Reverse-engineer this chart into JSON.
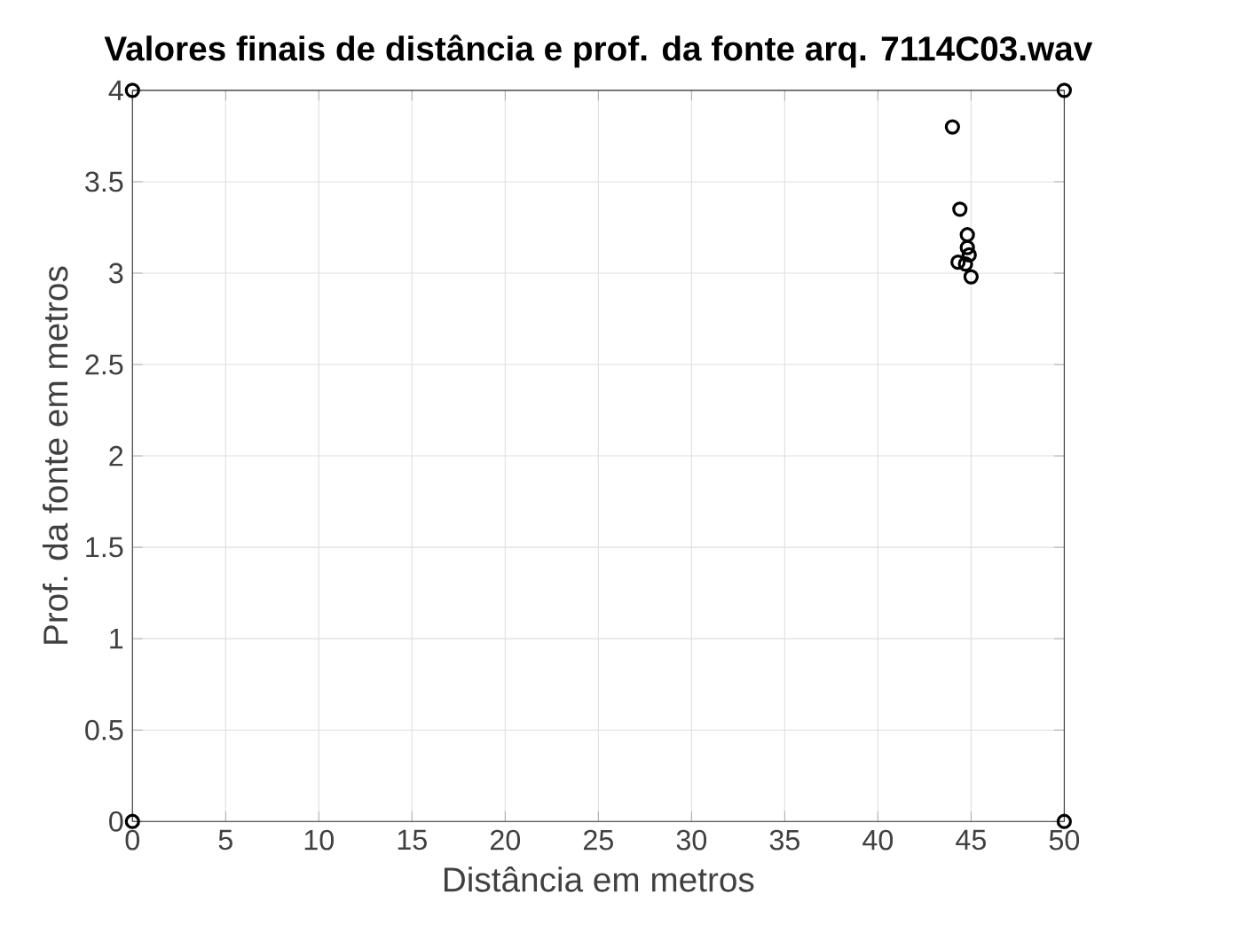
{
  "chart_data": {
    "type": "scatter",
    "title": "Valores finais de distância e prof. da fonte  arq. 7114C03.wav",
    "xlabel": "Distância em metros",
    "ylabel": "Prof. da fonte em metros",
    "x": [
      0,
      0,
      50,
      50,
      44.0,
      44.4,
      44.8,
      44.8,
      44.9,
      44.3,
      44.7,
      45.0
    ],
    "values": [
      0,
      4,
      4,
      0,
      3.8,
      3.35,
      3.21,
      3.14,
      3.1,
      3.06,
      3.05,
      2.98
    ],
    "color": "#000000",
    "marker": "circle",
    "xlim": [
      0,
      50
    ],
    "ylim": [
      0,
      4
    ],
    "xticks": [
      0,
      5,
      10,
      15,
      20,
      25,
      30,
      35,
      40,
      45,
      50
    ],
    "yticks": [
      0,
      0.5,
      1,
      1.5,
      2,
      2.5,
      3,
      3.5,
      4
    ],
    "grid": true
  }
}
